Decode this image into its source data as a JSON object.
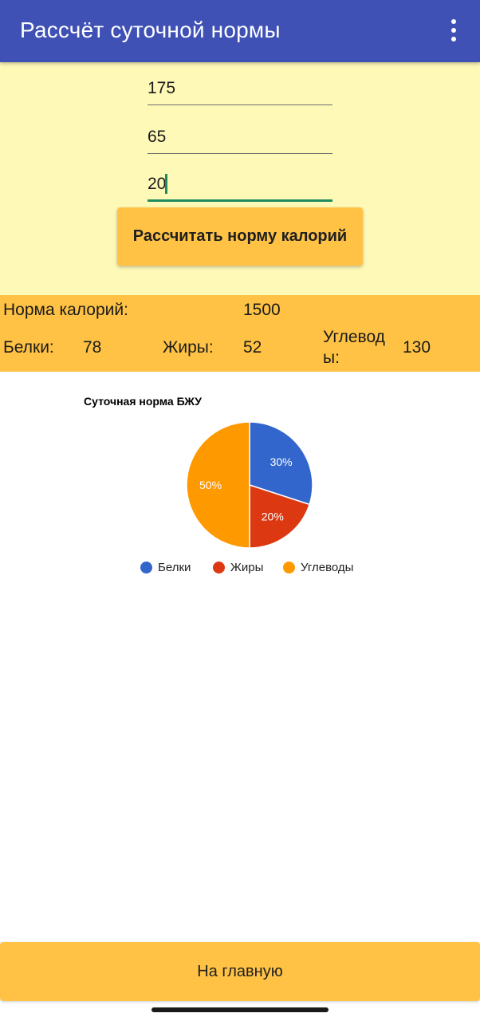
{
  "app_bar": {
    "title": "Рассчёт суточной нормы",
    "menu_icon": "more-vertical-icon"
  },
  "inputs": {
    "height": "175",
    "weight": "65",
    "age": "20"
  },
  "calculate_button": "Рассчитать норму калорий",
  "results": {
    "kcal_label": "Норма калорий:",
    "kcal_value": "1500",
    "protein_label": "Белки:",
    "protein_value": "78",
    "fat_label": "Жиры:",
    "fat_value": "52",
    "carbs_label": "Углеводы:",
    "carbs_value": "130"
  },
  "chart_data": {
    "type": "pie",
    "title": "Суточная норма БЖУ",
    "categories": [
      "Белки",
      "Жиры",
      "Углеводы"
    ],
    "values": [
      30,
      20,
      50
    ],
    "labels": [
      "30%",
      "20%",
      "50%"
    ],
    "colors": [
      "#3366cc",
      "#dc3912",
      "#ff9900"
    ],
    "legend": "bottom"
  },
  "home_button": "На главную",
  "colors": {
    "app_bar": "#3f51b5",
    "input_panel": "#fff9b7",
    "accent": "#ffc244",
    "focus": "#1e8a5e"
  }
}
